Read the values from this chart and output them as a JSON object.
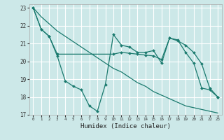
{
  "xlabel": "Humidex (Indice chaleur)",
  "xlim": [
    -0.5,
    23.5
  ],
  "ylim": [
    17,
    23.2
  ],
  "yticks": [
    17,
    18,
    19,
    20,
    21,
    22,
    23
  ],
  "xticks": [
    0,
    1,
    2,
    3,
    4,
    5,
    6,
    7,
    8,
    9,
    10,
    11,
    12,
    13,
    14,
    15,
    16,
    17,
    18,
    19,
    20,
    21,
    22,
    23
  ],
  "background_color": "#cce8e8",
  "grid_color": "#ffffff",
  "line_color": "#1a7a6e",
  "line1_x": [
    0,
    1,
    2,
    3,
    4,
    5,
    6,
    7,
    8,
    9,
    10,
    11,
    12,
    13,
    14,
    15,
    16,
    17,
    18,
    19,
    20,
    21,
    22,
    23
  ],
  "line1_y": [
    23.0,
    22.5,
    22.1,
    21.7,
    21.4,
    21.1,
    20.8,
    20.5,
    20.2,
    19.9,
    19.6,
    19.4,
    19.1,
    18.8,
    18.6,
    18.3,
    18.1,
    17.9,
    17.7,
    17.5,
    17.4,
    17.3,
    17.2,
    17.1
  ],
  "line2_x": [
    0,
    1,
    2,
    3,
    4,
    5,
    6,
    7,
    8,
    9,
    10,
    11,
    12,
    13,
    14,
    15,
    16,
    17,
    18,
    19,
    20,
    21,
    22,
    23
  ],
  "line2_y": [
    23.0,
    21.8,
    21.4,
    20.3,
    18.9,
    18.6,
    18.4,
    17.5,
    17.2,
    18.7,
    21.5,
    20.9,
    20.8,
    20.5,
    20.5,
    20.6,
    19.9,
    21.3,
    21.2,
    20.5,
    19.9,
    18.5,
    18.4,
    18.0
  ],
  "line3_x": [
    0,
    1,
    2,
    3,
    10,
    11,
    12,
    13,
    14,
    15,
    16,
    17,
    18,
    19,
    20,
    21,
    22,
    23
  ],
  "line3_y": [
    23.0,
    21.8,
    21.4,
    20.4,
    20.4,
    20.5,
    20.45,
    20.4,
    20.35,
    20.3,
    20.1,
    21.3,
    21.15,
    20.9,
    20.5,
    19.85,
    18.5,
    18.0
  ]
}
